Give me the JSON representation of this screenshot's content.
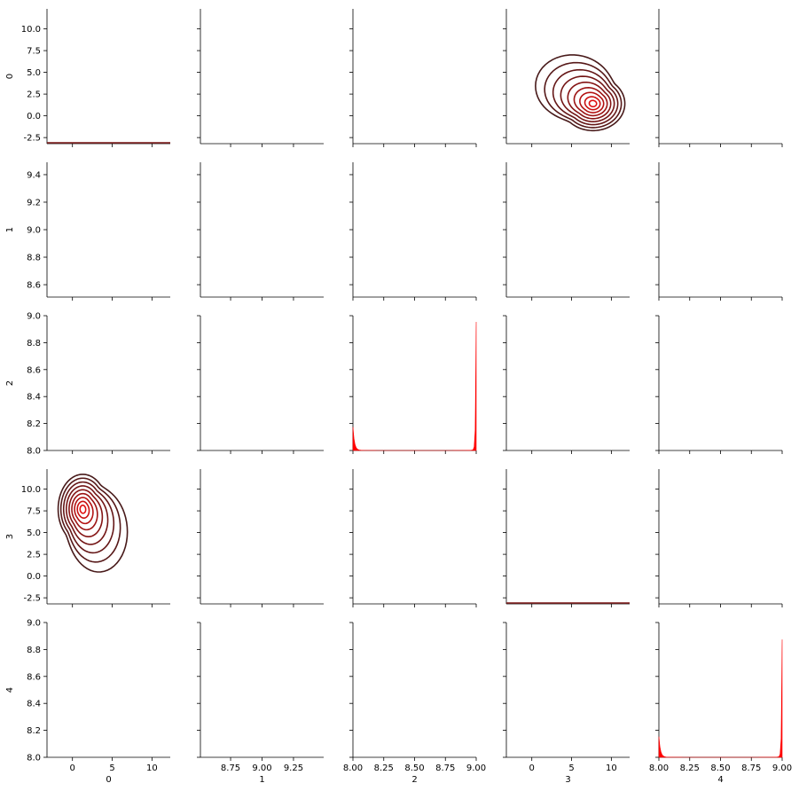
{
  "chart_data": {
    "type": "pairgrid",
    "title": "",
    "variables": [
      "0",
      "1",
      "2",
      "3",
      "4"
    ],
    "colors": {
      "kde_dark": "#3a1c1c",
      "kde_mid": "#7a1414",
      "kde_light": "#e01010",
      "hist": "#ff0000",
      "axis": "#000000"
    },
    "row_axes": [
      {
        "label": "0",
        "ylim": [
          -3.2,
          12.3
        ],
        "ticks": [
          "10.0",
          "7.5",
          "5.0",
          "2.5",
          "0.0",
          "-2.5"
        ],
        "tickvals": [
          10,
          7.5,
          5,
          2.5,
          0,
          -2.5
        ]
      },
      {
        "label": "1",
        "ylim": [
          8.51,
          9.49
        ],
        "ticks": [
          "9.4",
          "9.2",
          "9.0",
          "8.8",
          "8.6"
        ],
        "tickvals": [
          9.4,
          9.2,
          9.0,
          8.8,
          8.6
        ]
      },
      {
        "label": "2",
        "ylim": [
          8.0,
          9.0
        ],
        "ticks": [
          "9.0",
          "8.8",
          "8.6",
          "8.4",
          "8.2",
          "8.0"
        ],
        "tickvals": [
          9.0,
          8.8,
          8.6,
          8.4,
          8.2,
          8.0
        ]
      },
      {
        "label": "3",
        "ylim": [
          -3.2,
          12.3
        ],
        "ticks": [
          "10.0",
          "7.5",
          "5.0",
          "2.5",
          "0.0",
          "-2.5"
        ],
        "tickvals": [
          10,
          7.5,
          5,
          2.5,
          0,
          -2.5
        ]
      },
      {
        "label": "4",
        "ylim": [
          8.0,
          9.0
        ],
        "ticks": [
          "9.0",
          "8.8",
          "8.6",
          "8.4",
          "8.2",
          "8.0"
        ],
        "tickvals": [
          9.0,
          8.8,
          8.6,
          8.4,
          8.2,
          8.0
        ]
      }
    ],
    "col_axes": [
      {
        "label": "0",
        "xlim": [
          -3.2,
          12.3
        ],
        "ticks": [
          "0",
          "5",
          "10"
        ],
        "tickvals": [
          0,
          5,
          10
        ]
      },
      {
        "label": "1",
        "xlim": [
          8.51,
          9.49
        ],
        "ticks": [
          "8.75",
          "9.00",
          "9.25"
        ],
        "tickvals": [
          8.75,
          9.0,
          9.25
        ]
      },
      {
        "label": "2",
        "xlim": [
          8.0,
          9.0
        ],
        "ticks": [
          "8.00",
          "8.25",
          "8.50",
          "8.75",
          "9.00"
        ],
        "tickvals": [
          8.0,
          8.25,
          8.5,
          8.75,
          9.0
        ]
      },
      {
        "label": "3",
        "xlim": [
          -3.2,
          12.3
        ],
        "ticks": [
          "0",
          "5",
          "10"
        ],
        "tickvals": [
          0,
          5,
          10
        ]
      },
      {
        "label": "4",
        "xlim": [
          8.0,
          9.0
        ],
        "ticks": [
          "8.00",
          "8.25",
          "8.50",
          "8.75",
          "9.00"
        ],
        "tickvals": [
          8.0,
          8.25,
          8.5,
          8.75,
          9.0
        ]
      }
    ],
    "kde_contours": [
      {
        "row": 0,
        "col": 3,
        "center": [
          7.7,
          1.4
        ],
        "shape": "upper-left-lobe"
      },
      {
        "row": 3,
        "col": 0,
        "center": [
          1.3,
          7.7
        ],
        "shape": "lower-right-lobe"
      }
    ],
    "hist_panels": [
      {
        "row": 2,
        "col": 2,
        "left_peak": 8.17,
        "right_peak": 8.95,
        "baseline": 8.0
      },
      {
        "row": 4,
        "col": 4,
        "left_peak": 8.15,
        "right_peak": 8.87,
        "baseline": 8.0
      }
    ],
    "flat_lines": [
      {
        "row": 0,
        "col": 0
      },
      {
        "row": 3,
        "col": 3
      }
    ]
  }
}
